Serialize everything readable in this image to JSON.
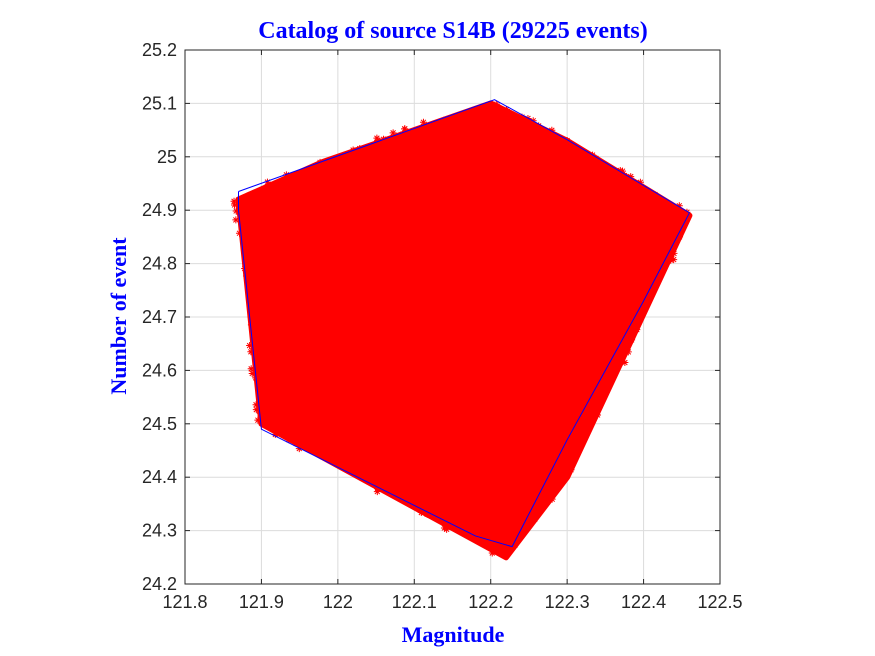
{
  "chart_data": {
    "type": "scatter",
    "title": "Catalog of source S14B (29225 events)",
    "xlabel": "Magnitude",
    "ylabel": "Number of event",
    "xlim": [
      121.8,
      122.5
    ],
    "ylim": [
      24.2,
      25.2
    ],
    "xticks": [
      "121.8",
      "121.9",
      "122",
      "122.1",
      "122.2",
      "122.3",
      "122.4",
      "122.5"
    ],
    "yticks": [
      "24.2",
      "24.3",
      "24.4",
      "24.5",
      "24.6",
      "24.7",
      "24.8",
      "24.9",
      "25",
      "25.1",
      "25.2"
    ],
    "grid": true,
    "marker": "*",
    "series": [
      {
        "name": "",
        "color": "#ff0000",
        "region_outline": [
          [
            121.87,
            24.92
          ],
          [
            121.98,
            24.99
          ],
          [
            122.2,
            25.1
          ],
          [
            122.3,
            25.03
          ],
          [
            122.46,
            24.89
          ],
          [
            122.3,
            24.4
          ],
          [
            122.22,
            24.25
          ],
          [
            121.9,
            24.5
          ]
        ]
      }
    ],
    "hull": {
      "color": "#0000ff",
      "points": [
        [
          121.87,
          24.935
        ],
        [
          122.205,
          25.107
        ],
        [
          122.3,
          25.032
        ],
        [
          122.46,
          24.895
        ],
        [
          122.4,
          24.73
        ],
        [
          122.3,
          24.47
        ],
        [
          122.228,
          24.27
        ],
        [
          122.18,
          24.29
        ],
        [
          121.9,
          24.49
        ],
        [
          121.87,
          24.9
        ],
        [
          121.87,
          24.935
        ]
      ]
    }
  }
}
